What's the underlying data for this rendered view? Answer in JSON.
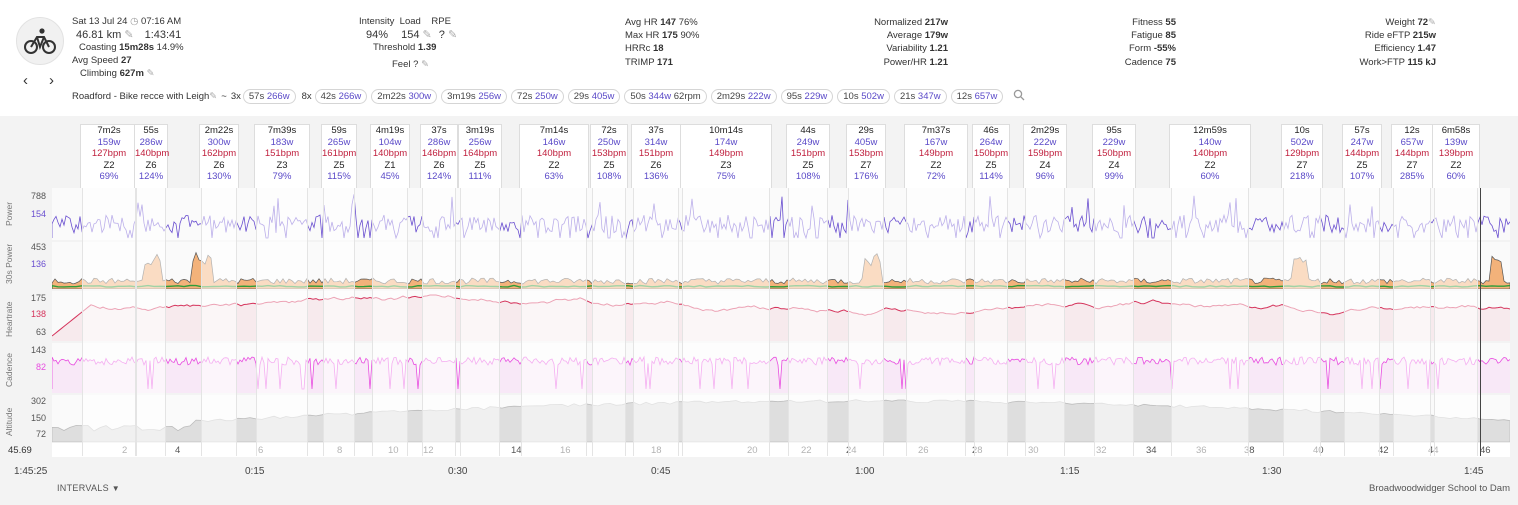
{
  "header": {
    "date": "Sat 13 Jul 24",
    "time": "07:16 AM",
    "distance": "46.81 km",
    "duration": "1:43:41",
    "coasting_label": "Coasting",
    "coasting_time": "15m28s",
    "coasting_pct": "14.9%",
    "avg_speed_label": "Avg Speed",
    "avg_speed": "27",
    "climbing_label": "Climbing",
    "climbing": "627m",
    "intensity_label": "Intensity",
    "intensity": "94%",
    "load_label": "Load",
    "load": "154",
    "rpe_label": "RPE",
    "rpe": "?",
    "threshold_label": "Threshold",
    "threshold": "1.39",
    "feel_label": "Feel",
    "feel": "?",
    "avg_hr_label": "Avg HR",
    "avg_hr": "147",
    "avg_hr_pct": "76%",
    "max_hr_label": "Max HR",
    "max_hr": "175",
    "max_hr_pct": "90%",
    "hrrc_label": "HRRc",
    "hrrc": "18",
    "trimp_label": "TRIMP",
    "trimp": "171",
    "normalized_label": "Normalized",
    "normalized": "217w",
    "average_label": "Average",
    "average": "179w",
    "variability_label": "Variability",
    "variability": "1.21",
    "power_hr_label": "Power/HR",
    "power_hr": "1.21",
    "fitness_label": "Fitness",
    "fitness": "55",
    "fatigue_label": "Fatigue",
    "fatigue": "85",
    "form_label": "Form",
    "form": "-55%",
    "cadence_label": "Cadence",
    "cadence": "75",
    "weight_label": "Weight",
    "weight": "72",
    "eftp_label": "Ride eFTP",
    "eftp": "215w",
    "efficiency_label": "Efficiency",
    "efficiency": "1.47",
    "work_label": "Work>FTP",
    "work": "115 kJ",
    "activity_name": "Roadford - Bike recce with Leigh",
    "tilde": "~",
    "repeat": "3x",
    "repeat2": "8x"
  },
  "pills": [
    {
      "t": "57s",
      "w": "266w"
    },
    {
      "t": "42s",
      "w": "266w"
    },
    {
      "t": "2m22s",
      "w": "300w"
    },
    {
      "t": "3m19s",
      "w": "256w"
    },
    {
      "t": "72s",
      "w": "250w"
    },
    {
      "t": "29s",
      "w": "405w"
    },
    {
      "t": "50s",
      "w": "344w",
      "x": "62rpm"
    },
    {
      "t": "2m29s",
      "w": "222w"
    },
    {
      "t": "95s",
      "w": "229w"
    },
    {
      "t": "10s",
      "w": "502w"
    },
    {
      "t": "21s",
      "w": "347w"
    },
    {
      "t": "12s",
      "w": "657w"
    }
  ],
  "intervals": [
    {
      "t": "7m2s",
      "w": "159w",
      "hr": "127bpm",
      "z": "Z2",
      "p": "69%"
    },
    {
      "t": "55s",
      "w": "286w",
      "hr": "140bpm",
      "z": "Z6",
      "p": "124%"
    },
    {
      "t": "2m22s",
      "w": "300w",
      "hr": "162bpm",
      "z": "Z6",
      "p": "130%"
    },
    {
      "t": "7m39s",
      "w": "183w",
      "hr": "151bpm",
      "z": "Z3",
      "p": "79%"
    },
    {
      "t": "59s",
      "w": "265w",
      "hr": "161bpm",
      "z": "Z5",
      "p": "115%"
    },
    {
      "t": "4m19s",
      "w": "104w",
      "hr": "140bpm",
      "z": "Z1",
      "p": "45%"
    },
    {
      "t": "37s",
      "w": "286w",
      "hr": "146bpm",
      "z": "Z6",
      "p": "124%"
    },
    {
      "t": "3m19s",
      "w": "256w",
      "hr": "164bpm",
      "z": "Z5",
      "p": "111%"
    },
    {
      "t": "7m14s",
      "w": "146w",
      "hr": "140bpm",
      "z": "Z2",
      "p": "63%"
    },
    {
      "t": "72s",
      "w": "250w",
      "hr": "153bpm",
      "z": "Z5",
      "p": "108%"
    },
    {
      "t": "37s",
      "w": "314w",
      "hr": "151bpm",
      "z": "Z6",
      "p": "136%"
    },
    {
      "t": "10m14s",
      "w": "174w",
      "hr": "149bpm",
      "z": "Z3",
      "p": "75%"
    },
    {
      "t": "44s",
      "w": "249w",
      "hr": "151bpm",
      "z": "Z5",
      "p": "108%"
    },
    {
      "t": "29s",
      "w": "405w",
      "hr": "153bpm",
      "z": "Z7",
      "p": "176%"
    },
    {
      "t": "7m37s",
      "w": "167w",
      "hr": "149bpm",
      "z": "Z2",
      "p": "72%"
    },
    {
      "t": "46s",
      "w": "264w",
      "hr": "150bpm",
      "z": "Z5",
      "p": "114%"
    },
    {
      "t": "2m29s",
      "w": "222w",
      "hr": "159bpm",
      "z": "Z4",
      "p": "96%"
    },
    {
      "t": "95s",
      "w": "229w",
      "hr": "150bpm",
      "z": "Z4",
      "p": "99%"
    },
    {
      "t": "12m59s",
      "w": "140w",
      "hr": "140bpm",
      "z": "Z2",
      "p": "60%"
    },
    {
      "t": "10s",
      "w": "502w",
      "hr": "129bpm",
      "z": "Z7",
      "p": "218%"
    },
    {
      "t": "57s",
      "w": "247w",
      "hr": "144bpm",
      "z": "Z5",
      "p": "107%"
    },
    {
      "t": "12s",
      "w": "657w",
      "hr": "144bpm",
      "z": "Z7",
      "p": "285%"
    },
    {
      "t": "6m58s",
      "w": "139w",
      "hr": "139bpm",
      "z": "Z2",
      "p": "60%"
    }
  ],
  "charts": {
    "power": {
      "label": "Power",
      "ticks": [
        "788",
        "154"
      ],
      "color": "#6a4fd0"
    },
    "power30": {
      "label": "30s Power",
      "ticks": [
        "453",
        "136"
      ]
    },
    "heartrate": {
      "label": "Heartrate",
      "ticks": [
        "175",
        "138",
        "63"
      ],
      "color": "#d5345c"
    },
    "cadence": {
      "label": "Cadence",
      "ticks": [
        "143",
        "82"
      ],
      "color": "#e84ce0"
    },
    "altitude": {
      "label": "Altitude",
      "ticks": [
        "302",
        "150",
        "72"
      ],
      "color": "#c9c9c9"
    }
  },
  "interval_numbers": [
    "2",
    "4",
    "6",
    "8",
    "10",
    "12",
    "14",
    "16",
    "18",
    "20",
    "22",
    "24",
    "26",
    "28",
    "30",
    "32",
    "34",
    "36",
    "38",
    "40",
    "42",
    "44",
    "46"
  ],
  "axis_left_value": "45.69",
  "time_ticks": [
    "1:45:25",
    "0:15",
    "0:30",
    "0:45",
    "1:00",
    "1:15",
    "1:30",
    "1:45"
  ],
  "footer": {
    "intervals_label": "INTERVALS",
    "location": "Broadwoodwidger School to Dam"
  }
}
